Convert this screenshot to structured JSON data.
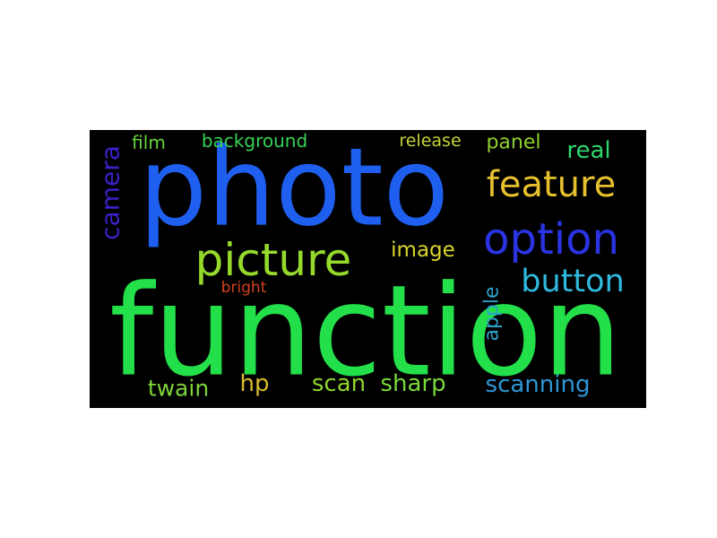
{
  "background_color": "#000000",
  "page_background": "#ffffff",
  "words": [
    {
      "text": "photo",
      "color": "#1f5ff0"
    },
    {
      "text": "function",
      "color": "#23e04a"
    },
    {
      "text": "picture",
      "color": "#95d92b"
    },
    {
      "text": "option",
      "color": "#2a34e2"
    },
    {
      "text": "feature",
      "color": "#e6c02d"
    },
    {
      "text": "button",
      "color": "#2fbadf"
    },
    {
      "text": "camera",
      "color": "#3e1fc9"
    },
    {
      "text": "film",
      "color": "#66d23a"
    },
    {
      "text": "background",
      "color": "#36d254"
    },
    {
      "text": "release",
      "color": "#c6d335"
    },
    {
      "text": "panel",
      "color": "#8fd22f"
    },
    {
      "text": "real",
      "color": "#2fd96f"
    },
    {
      "text": "image",
      "color": "#d9d52f"
    },
    {
      "text": "bright",
      "color": "#d2431c"
    },
    {
      "text": "apple",
      "color": "#2fa1c9"
    },
    {
      "text": "twain",
      "color": "#7ed33a"
    },
    {
      "text": "hp",
      "color": "#d7bb2a"
    },
    {
      "text": "scan",
      "color": "#8fd52b"
    },
    {
      "text": "sharp",
      "color": "#77d93a"
    },
    {
      "text": "scanning",
      "color": "#2f97d6"
    }
  ]
}
